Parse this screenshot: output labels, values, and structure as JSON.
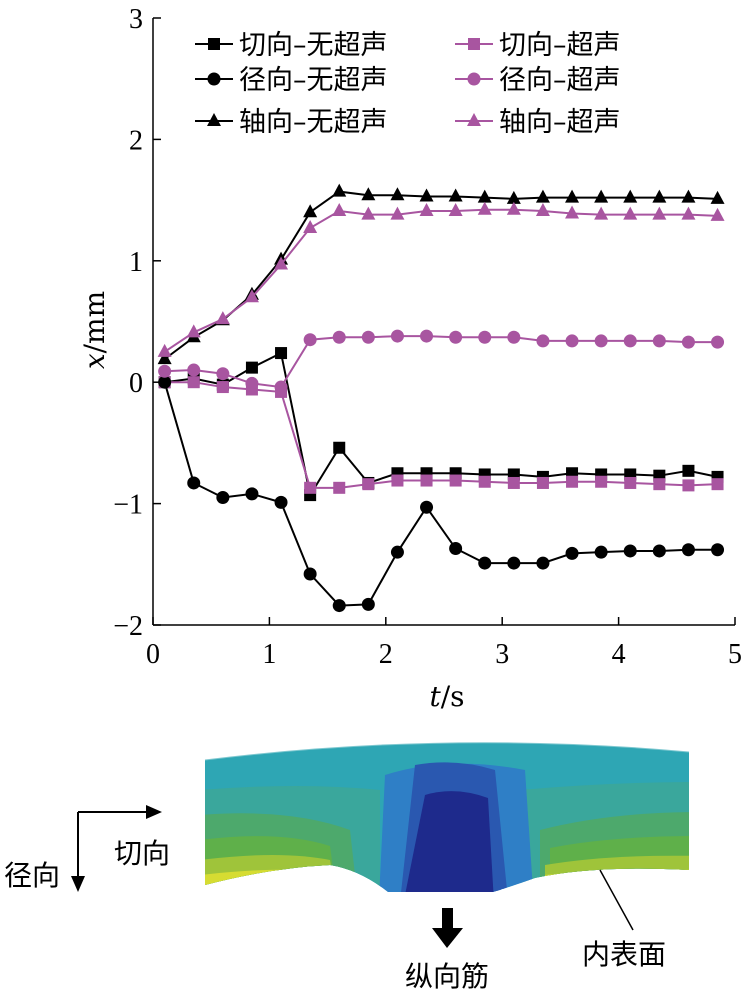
{
  "chart_data": {
    "type": "line",
    "xlabel": "t/s",
    "ylabel": "x/mm",
    "xlim": [
      0,
      5
    ],
    "ylim": [
      -2,
      3
    ],
    "xticks": [
      0,
      1,
      2,
      3,
      4,
      5
    ],
    "yticks": [
      -2,
      -1,
      0,
      1,
      2,
      3
    ],
    "grid": false,
    "legend_position": "top",
    "x": [
      0.1,
      0.35,
      0.6,
      0.85,
      1.1,
      1.35,
      1.6,
      1.85,
      2.1,
      2.35,
      2.6,
      2.85,
      3.1,
      3.35,
      3.6,
      3.85,
      4.1,
      4.35,
      4.6,
      4.85
    ],
    "series": [
      {
        "name": "切向–无超声",
        "color": "#000000",
        "marker": "square",
        "values": [
          0.0,
          0.03,
          -0.02,
          0.12,
          0.24,
          -0.93,
          -0.54,
          -0.83,
          -0.75,
          -0.75,
          -0.75,
          -0.76,
          -0.76,
          -0.78,
          -0.75,
          -0.76,
          -0.76,
          -0.77,
          -0.73,
          -0.78
        ]
      },
      {
        "name": "切向–超声",
        "color": "#a855a0",
        "marker": "square",
        "values": [
          0.0,
          0.0,
          -0.04,
          -0.06,
          -0.08,
          -0.87,
          -0.87,
          -0.84,
          -0.81,
          -0.81,
          -0.81,
          -0.82,
          -0.83,
          -0.83,
          -0.82,
          -0.82,
          -0.83,
          -0.84,
          -0.85,
          -0.84
        ]
      },
      {
        "name": "径向–无超声",
        "color": "#000000",
        "marker": "circle",
        "values": [
          0.0,
          -0.83,
          -0.95,
          -0.92,
          -0.99,
          -1.58,
          -1.84,
          -1.83,
          -1.4,
          -1.03,
          -1.37,
          -1.49,
          -1.49,
          -1.49,
          -1.41,
          -1.4,
          -1.39,
          -1.39,
          -1.38,
          -1.38
        ]
      },
      {
        "name": "径向–超声",
        "color": "#a855a0",
        "marker": "circle",
        "values": [
          0.09,
          0.1,
          0.07,
          -0.01,
          -0.04,
          0.35,
          0.37,
          0.37,
          0.38,
          0.38,
          0.37,
          0.37,
          0.37,
          0.34,
          0.34,
          0.34,
          0.34,
          0.34,
          0.33,
          0.33
        ]
      },
      {
        "name": "轴向–无超声",
        "color": "#000000",
        "marker": "triangle",
        "values": [
          0.19,
          0.37,
          0.51,
          0.72,
          1.01,
          1.4,
          1.57,
          1.54,
          1.54,
          1.53,
          1.53,
          1.52,
          1.51,
          1.52,
          1.52,
          1.52,
          1.52,
          1.52,
          1.52,
          1.51
        ]
      },
      {
        "name": "轴向–超声",
        "color": "#a855a0",
        "marker": "triangle",
        "values": [
          0.25,
          0.41,
          0.52,
          0.7,
          0.97,
          1.27,
          1.41,
          1.38,
          1.38,
          1.41,
          1.41,
          1.42,
          1.42,
          1.41,
          1.39,
          1.38,
          1.38,
          1.38,
          1.38,
          1.37
        ]
      }
    ]
  },
  "diagram": {
    "dir_tangential": "切向",
    "dir_radial": "径向",
    "rib_label": "纵向筋",
    "surface_label": "内表面"
  }
}
